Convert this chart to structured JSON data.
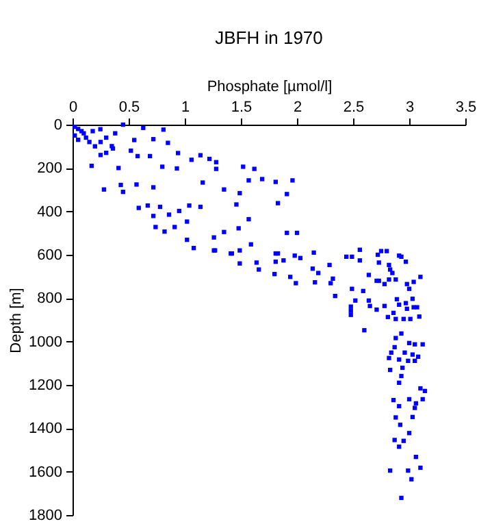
{
  "chart_data": {
    "type": "scatter",
    "title": "JBFH in 1970",
    "xlabel": "Phosphate [µmol/l]",
    "ylabel": "Depth [m]",
    "xlim": [
      0,
      3.5
    ],
    "xticks": [
      0,
      0.5,
      1,
      1.5,
      2,
      2.5,
      3,
      3.5
    ],
    "ylim": [
      1800,
      0
    ],
    "yticks": [
      0,
      200,
      400,
      600,
      800,
      1000,
      1200,
      1400,
      1600,
      1800
    ],
    "grid": false,
    "marker": "square",
    "series": [
      {
        "color": "#0000ff",
        "x": [
          0.02,
          0.05,
          0.08,
          0.1,
          0.12,
          0.15,
          0.05,
          0.02,
          0.18,
          0.2,
          0.25,
          0.3,
          0.3,
          0.38,
          0.36,
          0.25,
          0.248,
          0.45,
          0.63,
          0.81,
          0.55,
          0.72,
          0.85,
          0.94,
          1.14,
          1.22,
          1.28,
          0.58,
          0.69,
          0.8,
          0.93,
          0.17,
          0.41,
          0.28,
          0.43,
          0.57,
          0.72,
          0.45,
          0.59,
          0.67,
          0.78,
          0.72,
          0.86,
          0.95,
          1.04,
          1.14,
          1.02,
          0.74,
          0.82,
          0.91,
          1.02,
          1.26,
          1.35,
          1.42,
          1.27,
          1.48,
          1.46,
          1.35,
          1.16,
          1.49,
          1.59,
          1.57,
          1.83,
          1.91,
          1.69,
          1.57,
          1.81,
          1.96,
          1.52,
          1.62,
          1.28,
          1.06,
          0.52,
          0.35,
          1.83,
          1.98,
          1.91,
          2.0,
          1.08,
          1.26,
          1.41,
          1.49,
          1.49,
          1.64,
          1.66,
          1.81,
          1.81,
          1.88,
          2.03,
          2.15,
          1.8,
          1.94,
          1.99,
          2.14,
          2.19,
          2.16,
          2.29,
          2.32,
          2.3,
          2.34,
          2.44,
          2.49,
          2.56,
          2.56,
          2.72,
          2.73,
          2.75,
          2.8,
          2.82,
          2.83,
          2.85,
          2.91,
          2.93,
          2.97,
          2.64,
          2.71,
          2.73,
          2.78,
          2.82,
          2.88,
          2.98,
          3.0,
          3.04,
          3.1,
          2.49,
          2.59,
          2.52,
          2.48,
          2.48,
          2.48,
          2.64,
          2.65,
          2.71,
          2.78,
          2.81,
          2.86,
          2.89,
          2.91,
          2.97,
          2.98,
          3.04,
          3.07,
          2.88,
          2.95,
          3.01,
          3.09,
          3.03,
          2.6,
          2.93,
          2.88,
          3.0,
          3.05,
          3.12,
          2.87,
          2.84,
          2.96,
          3.03,
          3.08,
          2.82,
          2.91,
          2.99,
          3.05,
          2.94,
          2.83,
          2.93,
          2.91,
          3.1,
          3.14,
          2.86,
          3.0,
          3.06,
          3.12,
          2.91,
          3.05,
          2.88,
          3.03,
          2.92,
          3.0,
          2.87,
          2.95,
          2.91,
          3.06,
          2.83,
          2.99,
          3.1,
          3.02,
          2.93
        ],
        "values": [
          10,
          20,
          30,
          40,
          60,
          80,
          70,
          50,
          30,
          100,
          80,
          130,
          60,
          40,
          110,
          140,
          21,
          0,
          15,
          23,
          71,
          67,
          84,
          131,
          141,
          158,
          173,
          145,
          145,
          194,
          202,
          190,
          200,
          299,
          278,
          276,
          289,
          310,
          384,
          373,
          379,
          421,
          415,
          398,
          373,
          379,
          447,
          472,
          493,
          472,
          531,
          520,
          495,
          594,
          580,
          478,
          368,
          299,
          267,
          316,
          552,
          436,
          362,
          320,
          251,
          257,
          264,
          257,
          194,
          204,
          204,
          162,
          120,
          99,
          594,
          604,
          499,
          499,
          569,
          580,
          594,
          580,
          640,
          636,
          668,
          594,
          632,
          626,
          615,
          590,
          689,
          702,
          731,
          664,
          684,
          727,
          647,
          710,
          731,
          790,
          609,
          609,
          577,
          626,
          600,
          636,
          583,
          583,
          647,
          668,
          684,
          604,
          609,
          632,
          693,
          720,
          720,
          735,
          714,
          714,
          735,
          757,
          725,
          702,
          757,
          767,
          811,
          839,
          858,
          877,
          811,
          836,
          853,
          836,
          887,
          868,
          805,
          830,
          823,
          849,
          842,
          842,
          896,
          896,
          896,
          885,
          803,
          948,
          963,
          984,
          1007,
          1013,
          1013,
          1026,
          1051,
          1051,
          1060,
          1070,
          1076,
          1083,
          1089,
          1089,
          1121,
          1131,
          1159,
          1190,
          1216,
          1228,
          1270,
          1266,
          1285,
          1266,
          1298,
          1306,
          1350,
          1348,
          1384,
          1422,
          1454,
          1458,
          1485,
          1532,
          1595,
          1595,
          1582,
          1635,
          1721
        ]
      }
    ]
  }
}
